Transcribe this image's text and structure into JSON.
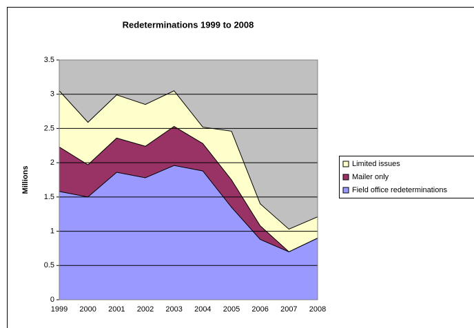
{
  "chart_data": {
    "type": "stacked_area",
    "title": "Redeterminations 1999 to 2008",
    "y_label": "Millions",
    "categories": [
      "1999",
      "2000",
      "2001",
      "2002",
      "2003",
      "2004",
      "2005",
      "2006",
      "2007",
      "2008"
    ],
    "series": [
      {
        "name": "Field office redeterminations",
        "color": "#9999ff",
        "values": [
          1.58,
          1.5,
          1.86,
          1.78,
          1.96,
          1.88,
          1.35,
          0.88,
          0.7,
          0.9
        ]
      },
      {
        "name": "Mailer only",
        "color": "#993366",
        "values": [
          0.65,
          0.47,
          0.5,
          0.46,
          0.57,
          0.4,
          0.4,
          0.2,
          0,
          0
        ]
      },
      {
        "name": "Limited issues",
        "color": "#ffffcc",
        "values": [
          0.82,
          0.62,
          0.63,
          0.61,
          0.52,
          0.24,
          0.71,
          0.32,
          0.33,
          0.31
        ]
      }
    ],
    "ylim": [
      0,
      3.5
    ],
    "yticks": [
      0,
      0.5,
      1,
      1.5,
      2,
      2.5,
      3,
      3.5
    ],
    "grid": true,
    "plot_background": "#c0c0c0",
    "legend": "right"
  }
}
